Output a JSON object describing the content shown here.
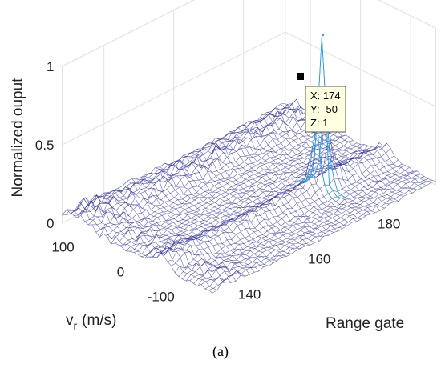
{
  "chart_data": {
    "type": "surface",
    "zlabel": "Normalized ouput",
    "xlabel": "Range gate",
    "ylabel_main": "v",
    "ylabel_sub": "r",
    "ylabel_unit": "(m/s)",
    "z_ticks": [
      "0",
      "0.5",
      "1"
    ],
    "x_ticks": [
      "140",
      "160",
      "180"
    ],
    "y_ticks": [
      "100",
      "0",
      "-100"
    ],
    "zlim": [
      0,
      1
    ],
    "xlim": [
      128,
      192
    ],
    "ylim": [
      -150,
      150
    ],
    "grid": true,
    "peak": {
      "x": 174,
      "y": -50,
      "z": 1
    },
    "datatip": {
      "x_text": "X: 174",
      "y_text": "Y: -50",
      "z_text": "Z: 1"
    },
    "colors": {
      "mesh": "#3d44c9",
      "mesh_dark": "#30308f",
      "peak_line": "#29a3e0"
    }
  },
  "caption": "(a)"
}
